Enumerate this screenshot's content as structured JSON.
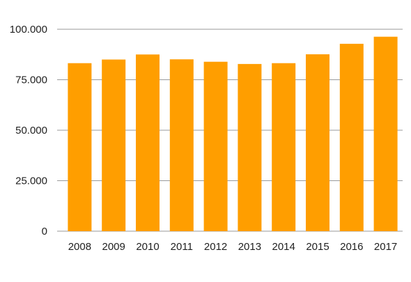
{
  "chart_data": {
    "type": "bar",
    "categories": [
      "2008",
      "2009",
      "2010",
      "2011",
      "2012",
      "2013",
      "2014",
      "2015",
      "2016",
      "2017"
    ],
    "values": [
      83200,
      85000,
      87500,
      85100,
      83900,
      82800,
      83200,
      87600,
      92800,
      96300
    ],
    "title": "",
    "xlabel": "",
    "ylabel": "",
    "ylim": [
      0,
      100000
    ],
    "y_ticks": [
      0,
      25000,
      50000,
      75000,
      100000
    ],
    "y_tick_labels": [
      "0",
      "25.000",
      "50.000",
      "75.000",
      "100.000"
    ],
    "grid": true,
    "legend": "none",
    "colors": {
      "bar": "#ff9e00",
      "grid": "#9a9a9a",
      "text": "#1f1f1f"
    }
  }
}
